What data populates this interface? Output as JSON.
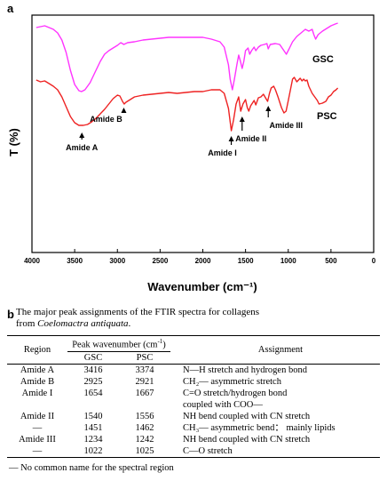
{
  "panel_a": "a",
  "panel_b": "b",
  "chart_data": {
    "type": "line",
    "xlabel": "Wavenumber (cm⁻¹)",
    "ylabel": "T (%)",
    "xlim": [
      4000,
      0
    ],
    "x_ticks": [
      "4000",
      "3500",
      "3000",
      "2500",
      "2000",
      "1500",
      "1000",
      "500",
      "0"
    ],
    "grid": false,
    "series": [
      {
        "name": "GSC",
        "color": "#ff33ff",
        "points": [
          [
            3950,
            14
          ],
          [
            3850,
            12
          ],
          [
            3800,
            14
          ],
          [
            3750,
            16
          ],
          [
            3700,
            20
          ],
          [
            3650,
            28
          ],
          [
            3600,
            42
          ],
          [
            3550,
            62
          ],
          [
            3500,
            78
          ],
          [
            3450,
            85
          ],
          [
            3420,
            86
          ],
          [
            3380,
            84
          ],
          [
            3320,
            76
          ],
          [
            3260,
            64
          ],
          [
            3200,
            52
          ],
          [
            3150,
            44
          ],
          [
            3100,
            40
          ],
          [
            3050,
            37
          ],
          [
            3000,
            34
          ],
          [
            2960,
            31
          ],
          [
            2925,
            33
          ],
          [
            2880,
            31
          ],
          [
            2800,
            30
          ],
          [
            2700,
            28
          ],
          [
            2600,
            27
          ],
          [
            2500,
            26
          ],
          [
            2400,
            25
          ],
          [
            2300,
            25
          ],
          [
            2200,
            25
          ],
          [
            2100,
            25
          ],
          [
            2000,
            25
          ],
          [
            1900,
            27
          ],
          [
            1800,
            30
          ],
          [
            1750,
            36
          ],
          [
            1700,
            56
          ],
          [
            1680,
            72
          ],
          [
            1654,
            84
          ],
          [
            1630,
            72
          ],
          [
            1600,
            55
          ],
          [
            1580,
            45
          ],
          [
            1560,
            52
          ],
          [
            1540,
            60
          ],
          [
            1520,
            52
          ],
          [
            1500,
            40
          ],
          [
            1470,
            37
          ],
          [
            1451,
            44
          ],
          [
            1430,
            40
          ],
          [
            1400,
            36
          ],
          [
            1380,
            40
          ],
          [
            1350,
            36
          ],
          [
            1320,
            34
          ],
          [
            1280,
            33
          ],
          [
            1250,
            32
          ],
          [
            1234,
            38
          ],
          [
            1210,
            33
          ],
          [
            1150,
            32
          ],
          [
            1100,
            33
          ],
          [
            1050,
            40
          ],
          [
            1022,
            44
          ],
          [
            990,
            38
          ],
          [
            950,
            30
          ],
          [
            900,
            24
          ],
          [
            850,
            20
          ],
          [
            800,
            16
          ],
          [
            760,
            18
          ],
          [
            720,
            16
          ],
          [
            700,
            22
          ],
          [
            680,
            27
          ],
          [
            650,
            22
          ],
          [
            600,
            18
          ],
          [
            550,
            15
          ],
          [
            500,
            12
          ],
          [
            450,
            10
          ],
          [
            420,
            9
          ]
        ]
      },
      {
        "name": "PSC",
        "color": "#ee2222",
        "points": [
          [
            3950,
            73
          ],
          [
            3900,
            75
          ],
          [
            3850,
            74
          ],
          [
            3800,
            77
          ],
          [
            3750,
            80
          ],
          [
            3700,
            84
          ],
          [
            3650,
            92
          ],
          [
            3600,
            103
          ],
          [
            3550,
            114
          ],
          [
            3500,
            121
          ],
          [
            3450,
            124
          ],
          [
            3400,
            124
          ],
          [
            3350,
            123
          ],
          [
            3300,
            120
          ],
          [
            3250,
            116
          ],
          [
            3200,
            111
          ],
          [
            3150,
            106
          ],
          [
            3100,
            100
          ],
          [
            3050,
            94
          ],
          [
            3000,
            90
          ],
          [
            2970,
            91
          ],
          [
            2940,
            97
          ],
          [
            2921,
            100
          ],
          [
            2900,
            98
          ],
          [
            2850,
            95
          ],
          [
            2800,
            92
          ],
          [
            2700,
            90
          ],
          [
            2600,
            89
          ],
          [
            2500,
            88
          ],
          [
            2400,
            87
          ],
          [
            2300,
            88
          ],
          [
            2200,
            87
          ],
          [
            2100,
            86
          ],
          [
            2000,
            86
          ],
          [
            1900,
            84
          ],
          [
            1800,
            84
          ],
          [
            1750,
            88
          ],
          [
            1700,
            105
          ],
          [
            1667,
            130
          ],
          [
            1640,
            118
          ],
          [
            1610,
            100
          ],
          [
            1580,
            92
          ],
          [
            1556,
            108
          ],
          [
            1530,
            100
          ],
          [
            1500,
            95
          ],
          [
            1480,
            104
          ],
          [
            1462,
            108
          ],
          [
            1440,
            102
          ],
          [
            1400,
            96
          ],
          [
            1380,
            101
          ],
          [
            1350,
            93
          ],
          [
            1320,
            92
          ],
          [
            1290,
            89
          ],
          [
            1260,
            94
          ],
          [
            1242,
            97
          ],
          [
            1220,
            88
          ],
          [
            1200,
            82
          ],
          [
            1170,
            80
          ],
          [
            1150,
            84
          ],
          [
            1120,
            92
          ],
          [
            1080,
            104
          ],
          [
            1050,
            110
          ],
          [
            1025,
            108
          ],
          [
            1000,
            96
          ],
          [
            970,
            82
          ],
          [
            950,
            72
          ],
          [
            930,
            70
          ],
          [
            900,
            75
          ],
          [
            880,
            73
          ],
          [
            860,
            71
          ],
          [
            840,
            74
          ],
          [
            820,
            72
          ],
          [
            800,
            74
          ],
          [
            780,
            73
          ],
          [
            760,
            80
          ],
          [
            720,
            88
          ],
          [
            690,
            92
          ],
          [
            660,
            96
          ],
          [
            640,
            100
          ],
          [
            600,
            99
          ],
          [
            560,
            97
          ],
          [
            530,
            92
          ],
          [
            500,
            90
          ],
          [
            470,
            86
          ],
          [
            440,
            84
          ],
          [
            420,
            82
          ]
        ]
      }
    ],
    "series_labels": [
      "GSC",
      "PSC"
    ],
    "annotations": [
      {
        "text": "Amide A",
        "x": 3416,
        "y": 128,
        "label_y": 152,
        "dx": 0
      },
      {
        "text": "Amide B",
        "x": 2925,
        "y": 100,
        "label_y": 120,
        "dx": -20
      },
      {
        "text": "Amide  I",
        "x": 1667,
        "y": 132,
        "label_y": 158,
        "dx": -10
      },
      {
        "text": "Amide  II",
        "x": 1540,
        "y": 110,
        "label_y": 142,
        "dx": 10
      },
      {
        "text": "Amide   III",
        "x": 1234,
        "y": 98,
        "label_y": 127,
        "dx": 20
      }
    ]
  },
  "table": {
    "caption_line1": "The major peak assignments of the FTIR spectra for collagens",
    "caption_line2_prefix": "from ",
    "caption_line2_italic": "Coelomactra antiquata",
    "caption_line2_suffix": ".",
    "header": {
      "region": "Region",
      "peak": "Peak wavenumber (cm",
      "peak_sup": "-1",
      "peak_close": ")",
      "gsc": "GSC",
      "psc": "PSC",
      "assignment": "Assignment"
    },
    "rows": [
      {
        "region": "Amide A",
        "gsc": "3416",
        "psc": "3374",
        "assignment": "N—H stretch and hydrogen bond"
      },
      {
        "region": "Amide B",
        "gsc": "2925",
        "psc": "2921",
        "assignment": "CH₂— asymmetric stretch"
      },
      {
        "region": "Amide I",
        "gsc": "1654",
        "psc": "1667",
        "assignment": "C=O stretch/hydrogen bond"
      },
      {
        "region": "",
        "gsc": "",
        "psc": "",
        "assignment": "coupled with COO—"
      },
      {
        "region": "Amide II",
        "gsc": "1540",
        "psc": "1556",
        "assignment": "NH bend coupled with CN stretch"
      },
      {
        "region": "—",
        "gsc": "1451",
        "psc": "1462",
        "assignment": "CH₃— asymmetric bend： mainly lipids"
      },
      {
        "region": "Amide III",
        "gsc": "1234",
        "psc": "1242",
        "assignment": "NH bend coupled with CN stretch"
      },
      {
        "region": "—",
        "gsc": "1022",
        "psc": "1025",
        "assignment": "C—O stretch"
      }
    ],
    "footnote": "— No common name for the spectral region"
  }
}
